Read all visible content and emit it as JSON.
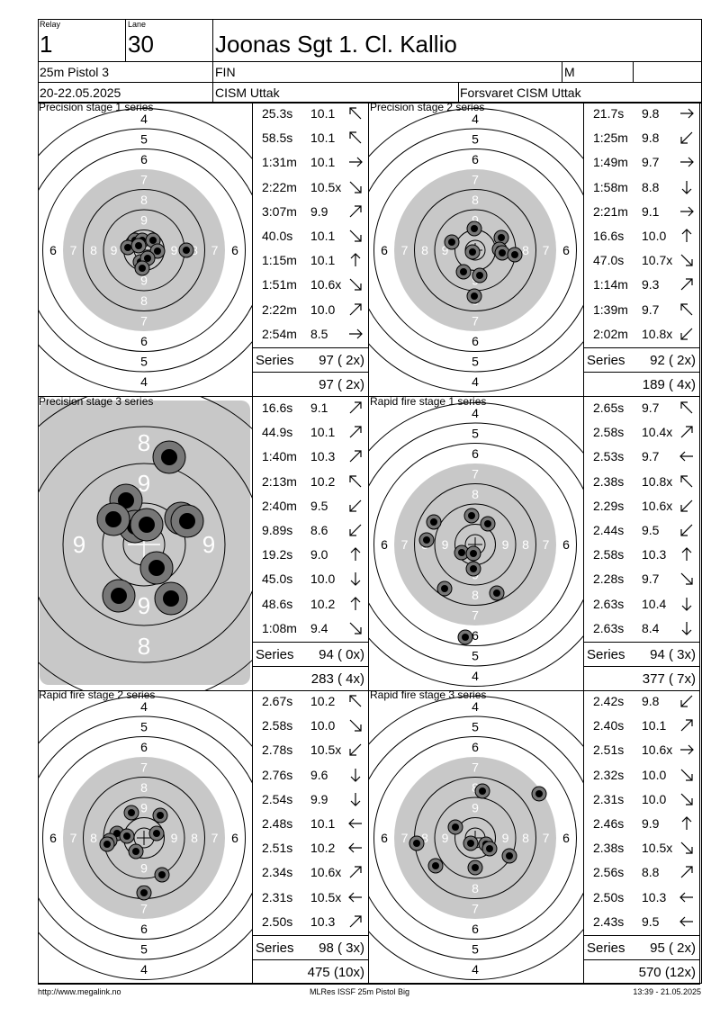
{
  "header": {
    "relay_label": "Relay",
    "relay_value": "1",
    "lane_label": "Lane",
    "lane_value": "30",
    "shooter_name": "Joonas Sgt 1. Cl. Kallio",
    "event": "25m Pistol 3",
    "nation": "FIN",
    "gender": "M",
    "date": "20-22.05.2025",
    "competition": "CISM Uttak",
    "club": "Forsvaret CISM Uttak"
  },
  "panels": [
    {
      "title": "Precision stage 1 series",
      "target_type": "full",
      "shots": [
        {
          "time": "25.3s",
          "score": "10.1",
          "dir": "up-left"
        },
        {
          "time": "58.5s",
          "score": "10.1",
          "dir": "up-left"
        },
        {
          "time": "1:31m",
          "score": "10.1",
          "dir": "right"
        },
        {
          "time": "2:22m",
          "score": "10.5x",
          "dir": "down-right"
        },
        {
          "time": "3:07m",
          "score": "9.9",
          "dir": "up-right"
        },
        {
          "time": "40.0s",
          "score": "10.1",
          "dir": "down-right"
        },
        {
          "time": "1:15m",
          "score": "10.1",
          "dir": "up"
        },
        {
          "time": "1:51m",
          "score": "10.6x",
          "dir": "down-right"
        },
        {
          "time": "2:22m",
          "score": "10.0",
          "dir": "up-right"
        },
        {
          "time": "2:54m",
          "score": "8.5",
          "dir": "right"
        }
      ],
      "series_label": "Series",
      "series_value": "97 ( 2x)",
      "total": "97 ( 2x)"
    },
    {
      "title": "Precision stage 2 series",
      "target_type": "full",
      "shots": [
        {
          "time": "21.7s",
          "score": "9.8",
          "dir": "right"
        },
        {
          "time": "1:25m",
          "score": "9.8",
          "dir": "down-left"
        },
        {
          "time": "1:49m",
          "score": "9.7",
          "dir": "right"
        },
        {
          "time": "1:58m",
          "score": "8.8",
          "dir": "down"
        },
        {
          "time": "2:21m",
          "score": "9.1",
          "dir": "right"
        },
        {
          "time": "16.6s",
          "score": "10.0",
          "dir": "up"
        },
        {
          "time": "47.0s",
          "score": "10.7x",
          "dir": "down-right"
        },
        {
          "time": "1:14m",
          "score": "9.3",
          "dir": "up-right"
        },
        {
          "time": "1:39m",
          "score": "9.7",
          "dir": "up-left"
        },
        {
          "time": "2:02m",
          "score": "10.8x",
          "dir": "down-left"
        }
      ],
      "series_label": "Series",
      "series_value": "92 ( 2x)",
      "total": "189 ( 4x)"
    },
    {
      "title": "Precision stage 3 series",
      "target_type": "zoom",
      "shots": [
        {
          "time": "16.6s",
          "score": "9.1",
          "dir": "up-right"
        },
        {
          "time": "44.9s",
          "score": "10.1",
          "dir": "up-right"
        },
        {
          "time": "1:40m",
          "score": "10.3",
          "dir": "up-right"
        },
        {
          "time": "2:13m",
          "score": "10.2",
          "dir": "up-left"
        },
        {
          "time": "2:40m",
          "score": "9.5",
          "dir": "down-left"
        },
        {
          "time": "9.89s",
          "score": "8.6",
          "dir": "down-left"
        },
        {
          "time": "19.2s",
          "score": "9.0",
          "dir": "up"
        },
        {
          "time": "45.0s",
          "score": "10.0",
          "dir": "down"
        },
        {
          "time": "48.6s",
          "score": "10.2",
          "dir": "up"
        },
        {
          "time": "1:08m",
          "score": "9.4",
          "dir": "down-right"
        }
      ],
      "series_label": "Series",
      "series_value": "94 ( 0x)",
      "total": "283 ( 4x)"
    },
    {
      "title": "Rapid fire stage 1 series",
      "target_type": "full",
      "shots": [
        {
          "time": "2.65s",
          "score": "9.7",
          "dir": "up-left"
        },
        {
          "time": "2.58s",
          "score": "10.4x",
          "dir": "up-right"
        },
        {
          "time": "2.53s",
          "score": "9.7",
          "dir": "left"
        },
        {
          "time": "2.38s",
          "score": "10.8x",
          "dir": "up-left"
        },
        {
          "time": "2.29s",
          "score": "10.6x",
          "dir": "down-left"
        },
        {
          "time": "2.44s",
          "score": "9.5",
          "dir": "down-left"
        },
        {
          "time": "2.58s",
          "score": "10.3",
          "dir": "up"
        },
        {
          "time": "2.28s",
          "score": "9.7",
          "dir": "down-right"
        },
        {
          "time": "2.63s",
          "score": "10.4",
          "dir": "down"
        },
        {
          "time": "2.63s",
          "score": "8.4",
          "dir": "down"
        }
      ],
      "series_label": "Series",
      "series_value": "94 ( 3x)",
      "total": "377 ( 7x)"
    },
    {
      "title": "Rapid fire stage 2 series",
      "target_type": "full",
      "shots": [
        {
          "time": "2.67s",
          "score": "10.2",
          "dir": "up-left"
        },
        {
          "time": "2.58s",
          "score": "10.0",
          "dir": "down-right"
        },
        {
          "time": "2.78s",
          "score": "10.5x",
          "dir": "down-left"
        },
        {
          "time": "2.76s",
          "score": "9.6",
          "dir": "down"
        },
        {
          "time": "2.54s",
          "score": "9.9",
          "dir": "down"
        },
        {
          "time": "2.48s",
          "score": "10.1",
          "dir": "left"
        },
        {
          "time": "2.51s",
          "score": "10.2",
          "dir": "left"
        },
        {
          "time": "2.34s",
          "score": "10.6x",
          "dir": "up-right"
        },
        {
          "time": "2.31s",
          "score": "10.5x",
          "dir": "left"
        },
        {
          "time": "2.50s",
          "score": "10.3",
          "dir": "up-right"
        }
      ],
      "series_label": "Series",
      "series_value": "98 ( 3x)",
      "total": "475 (10x)"
    },
    {
      "title": "Rapid fire stage 3 series",
      "target_type": "full",
      "shots": [
        {
          "time": "2.42s",
          "score": "9.8",
          "dir": "down-left"
        },
        {
          "time": "2.40s",
          "score": "10.1",
          "dir": "up-right"
        },
        {
          "time": "2.51s",
          "score": "10.6x",
          "dir": "right"
        },
        {
          "time": "2.32s",
          "score": "10.0",
          "dir": "down-right"
        },
        {
          "time": "2.31s",
          "score": "10.0",
          "dir": "down-right"
        },
        {
          "time": "2.46s",
          "score": "9.9",
          "dir": "up"
        },
        {
          "time": "2.38s",
          "score": "10.5x",
          "dir": "down-right"
        },
        {
          "time": "2.56s",
          "score": "8.8",
          "dir": "up-right"
        },
        {
          "time": "2.50s",
          "score": "10.3",
          "dir": "left"
        },
        {
          "time": "2.43s",
          "score": "9.5",
          "dir": "left"
        }
      ],
      "series_label": "Series",
      "series_value": "95 ( 2x)",
      "total": "570 (12x)"
    }
  ],
  "ring_labels_full": [
    "4",
    "5",
    "6",
    "7",
    "8",
    "9"
  ],
  "ring_labels_zoom": [
    "8",
    "9"
  ],
  "footer": {
    "url": "http://www.megalink.no",
    "program": "MLRes ISSF 25m Pistol Big",
    "timestamp": "13:39 - 21.05.2025"
  }
}
